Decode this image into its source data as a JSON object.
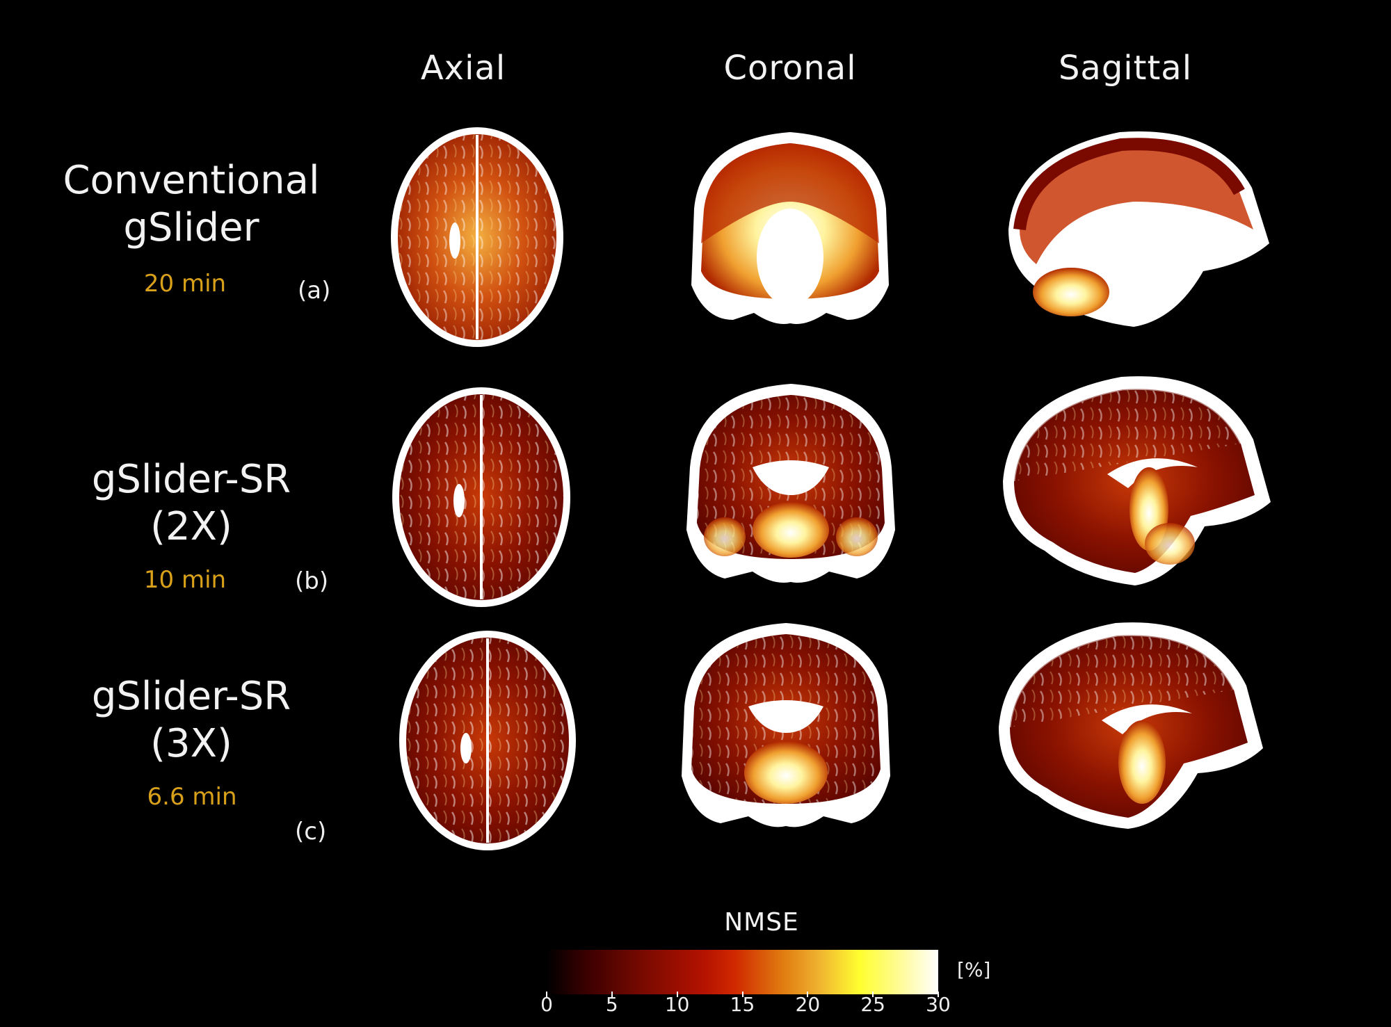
{
  "columns": [
    "Axial",
    "Coronal",
    "Sagittal"
  ],
  "rows": [
    {
      "title_line1": "Conventional",
      "title_line2": "gSlider",
      "time": "20 min",
      "letter": "(a)"
    },
    {
      "title_line1": "gSlider-SR",
      "title_line2": "(2X)",
      "time": "10 min",
      "letter": "(b)"
    },
    {
      "title_line1": "gSlider-SR",
      "title_line2": "(3X)",
      "time": "6.6 min",
      "letter": "(c)"
    }
  ],
  "colorbar": {
    "title": "NMSE",
    "unit": "[%]",
    "ticks": [
      "0",
      "5",
      "10",
      "15",
      "20",
      "25",
      "30"
    ],
    "min": 0,
    "max": 30,
    "colormap": "hot"
  },
  "colors": {
    "time_label": "#d9a11a",
    "background": "#000000"
  }
}
